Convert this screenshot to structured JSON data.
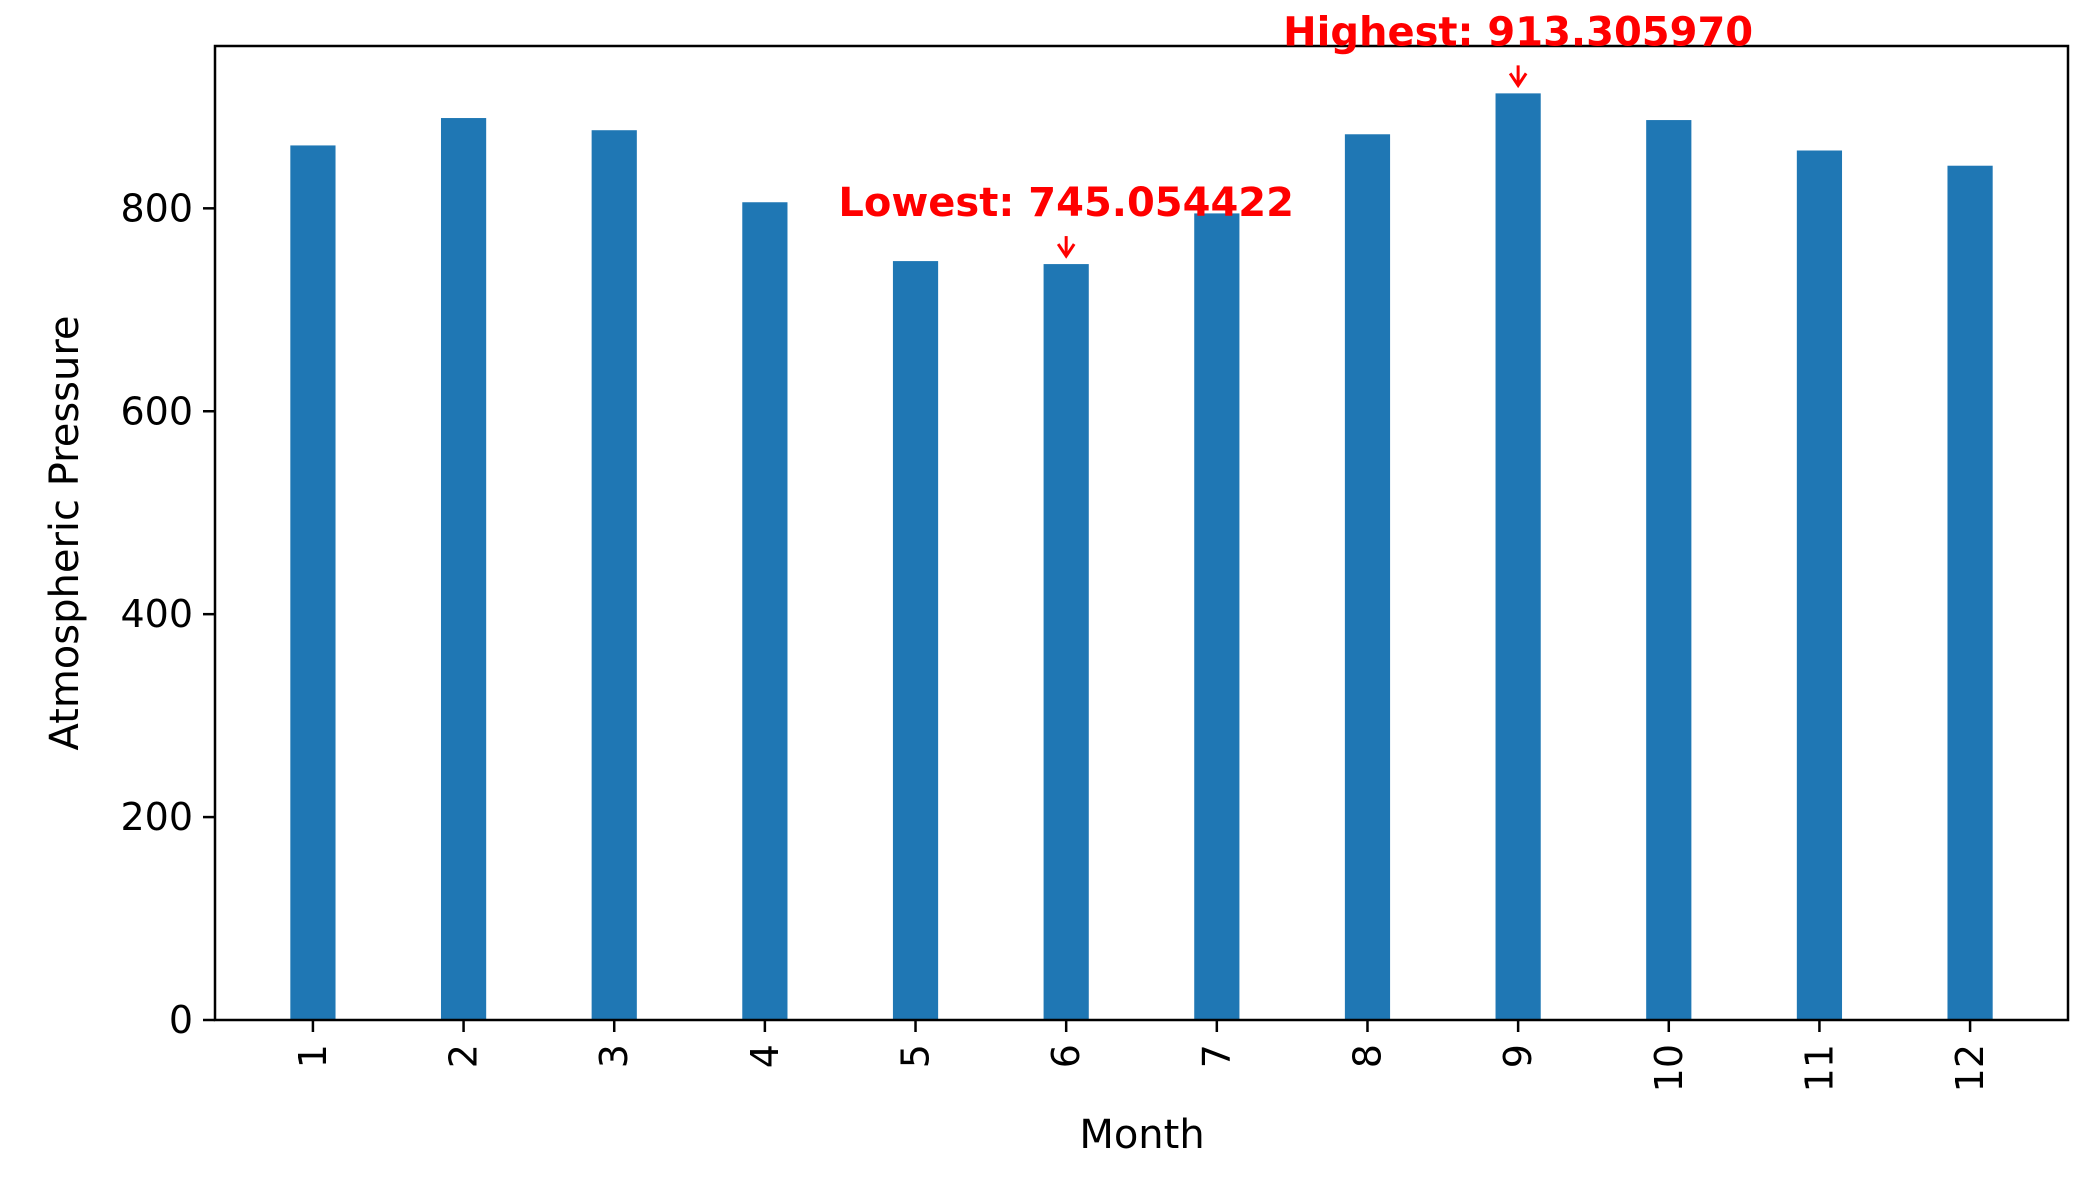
{
  "chart_data": {
    "type": "bar",
    "title": "",
    "xlabel": "Month",
    "ylabel": "Atmospheric Pressure",
    "categories": [
      "1",
      "2",
      "3",
      "4",
      "5",
      "6",
      "7",
      "8",
      "9",
      "10",
      "11",
      "12"
    ],
    "values": [
      862,
      889,
      877,
      806,
      748,
      745.054422,
      795,
      873,
      913.30597,
      887,
      857,
      842
    ],
    "ylim": [
      0,
      960
    ],
    "yticks": [
      0,
      200,
      400,
      600,
      800
    ],
    "x_tick_rotation": "vertical",
    "grid": false,
    "legend": "none",
    "bar_color": "#1f77b4",
    "annotations": [
      {
        "text": "Lowest: 745.054422",
        "category": "6",
        "value": 745.054422,
        "color": "#ff0000"
      },
      {
        "text": "Highest: 913.305970",
        "category": "9",
        "value": 913.30597,
        "color": "#ff0000"
      }
    ]
  }
}
